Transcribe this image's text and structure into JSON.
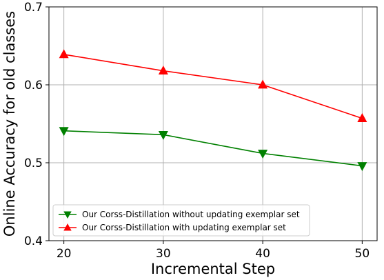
{
  "chart_data": {
    "type": "line",
    "title": "",
    "xlabel": "Incremental Step",
    "ylabel": "Online Accuracy for old classes",
    "x": [
      20,
      30,
      40,
      50
    ],
    "xlim": [
      18.5,
      51.5
    ],
    "ylim": [
      0.4,
      0.7
    ],
    "xticks": [
      20,
      30,
      40,
      50
    ],
    "xtick_labels": [
      "20",
      "30",
      "40",
      "50"
    ],
    "yticks": [
      0.4,
      0.5,
      0.6,
      0.7
    ],
    "ytick_labels": [
      "0.4",
      "0.5",
      "0.6",
      "0.7"
    ],
    "grid": true,
    "legend_position": "lower-left",
    "series": [
      {
        "name": "Our Corss-Distillation without updating exemplar set",
        "values": [
          0.541,
          0.536,
          0.512,
          0.496
        ],
        "color": "#008000",
        "marker": "triangle-down"
      },
      {
        "name": "Our Corss-Distillation with updating exemplar set",
        "values": [
          0.639,
          0.618,
          0.6,
          0.557
        ],
        "color": "#ff0000",
        "marker": "triangle-up"
      }
    ]
  }
}
